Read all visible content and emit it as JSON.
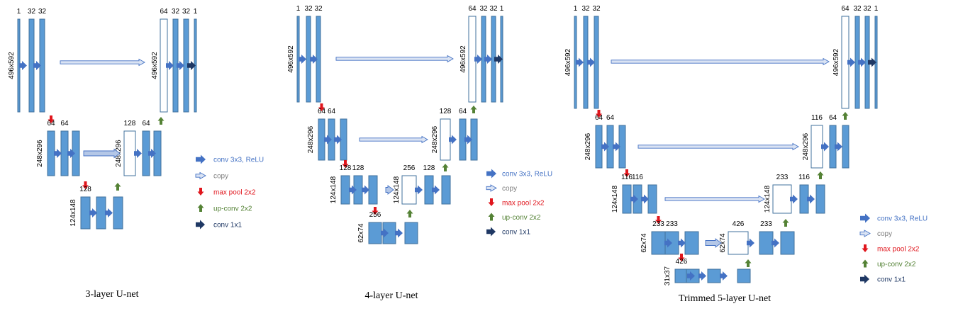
{
  "diagram": {
    "networks": [
      {
        "caption": "3-layer U-net",
        "levels": [
          {
            "size": "496x592",
            "enc": [
              "1",
              "32",
              "32"
            ],
            "dec": [
              "64",
              "32",
              "32",
              "1"
            ]
          },
          {
            "size": "248x296",
            "enc": [
              "64",
              "64"
            ],
            "dec": [
              "128",
              "64"
            ]
          },
          {
            "size": "124x148",
            "enc": [
              "128"
            ],
            "dec": []
          }
        ]
      },
      {
        "caption": "4-layer U-net",
        "levels": [
          {
            "size": "496x592",
            "enc": [
              "1",
              "32",
              "32"
            ],
            "dec": [
              "64",
              "32",
              "32",
              "1"
            ]
          },
          {
            "size": "248x296",
            "enc": [
              "64",
              "64"
            ],
            "dec": [
              "128",
              "64"
            ]
          },
          {
            "size": "124x148",
            "enc": [
              "128",
              "128"
            ],
            "dec": [
              "256",
              "128"
            ]
          },
          {
            "size": "62x74",
            "enc": [
              "256"
            ],
            "dec": []
          }
        ]
      },
      {
        "caption": "Trimmed 5-layer U-net",
        "levels": [
          {
            "size": "496x592",
            "enc": [
              "1",
              "32",
              "32"
            ],
            "dec": [
              "64",
              "32",
              "32",
              "1"
            ]
          },
          {
            "size": "248x296",
            "enc": [
              "64",
              "64"
            ],
            "dec": [
              "116",
              "64"
            ]
          },
          {
            "size": "124x148",
            "enc": [
              "116",
              "116"
            ],
            "dec": [
              "233",
              "116"
            ]
          },
          {
            "size": "62x74",
            "enc": [
              "233",
              "233"
            ],
            "dec": [
              "426",
              "233"
            ]
          },
          {
            "size": "31x37",
            "enc": [
              "426"
            ],
            "dec": []
          }
        ]
      }
    ],
    "legend": [
      {
        "label": "conv 3x3, ReLU",
        "icon": "conv-arrow-icon",
        "color": "#4472c4"
      },
      {
        "label": "copy",
        "icon": "copy-arrow-icon",
        "color": "#8faadc"
      },
      {
        "label": "max pool 2x2",
        "icon": "max-pool-arrow-icon",
        "color": "#e0161d"
      },
      {
        "label": "up-conv 2x2",
        "icon": "up-conv-arrow-icon",
        "color": "#548235"
      },
      {
        "label": "conv 1x1",
        "icon": "conv1x1-arrow-icon",
        "color": "#1f3864"
      }
    ],
    "colors": {
      "block": "#5b9bd5",
      "block_edge": "#41719c",
      "conv_arrow": "#4472c4"
    }
  }
}
